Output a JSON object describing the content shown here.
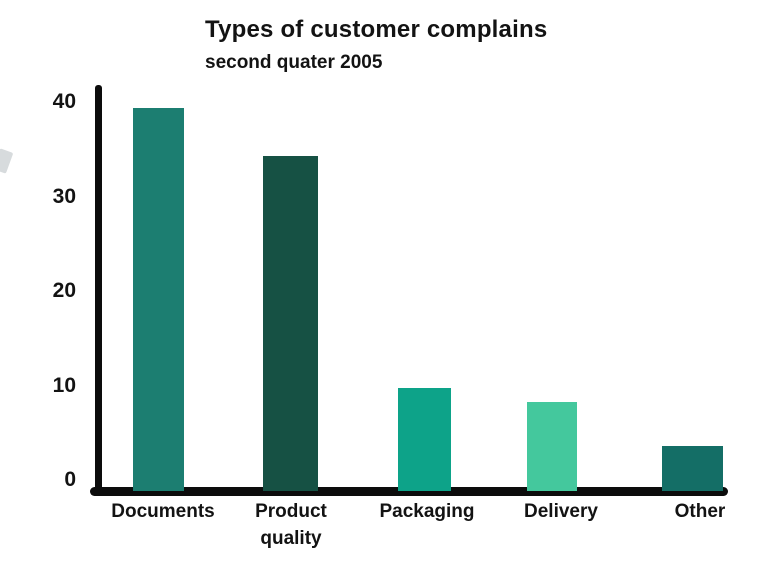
{
  "header": {
    "title": "Types of customer complains",
    "subtitle": "second quater 2005"
  },
  "chart_data": {
    "type": "bar",
    "title": "Types of customer complains",
    "subtitle": "second quater 2005",
    "categories": [
      "Documents",
      "Product quality",
      "Packaging",
      "Delivery",
      "Other"
    ],
    "values": [
      39.5,
      34.5,
      10.5,
      9,
      4.5
    ],
    "bar_colors": [
      "#1c7e71",
      "#165144",
      "#0da389",
      "#44c89d",
      "#146e66"
    ],
    "yticks": [
      0,
      10,
      20,
      30,
      40
    ],
    "ylim": [
      0,
      42
    ],
    "xlabel": "",
    "ylabel": "",
    "grid": false,
    "legend": "none",
    "axis_color": "#0c0c0c"
  }
}
